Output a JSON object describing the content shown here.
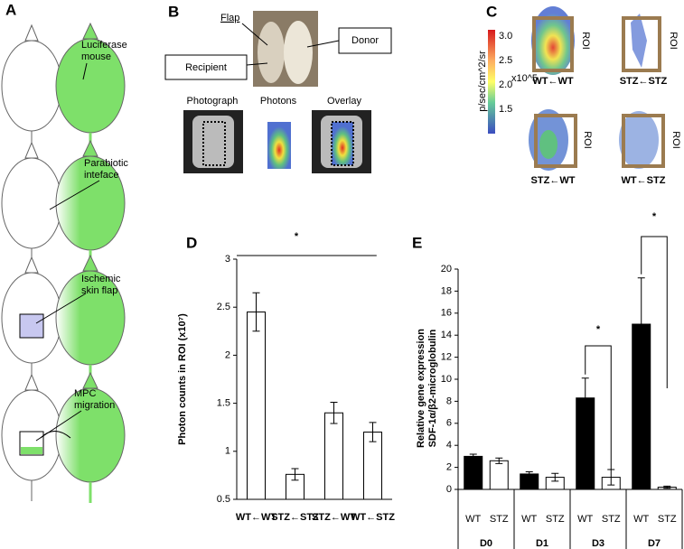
{
  "panel_a": {
    "letter": "A",
    "labels": [
      [
        "Luciferase",
        "mouse"
      ],
      [
        "Parabiotic",
        "inteface"
      ],
      [
        "Ischemic",
        "skin flap"
      ],
      [
        "MPC",
        "migration"
      ]
    ]
  },
  "panel_b": {
    "letter": "B",
    "flap": "Flap",
    "donor": "Donor",
    "recipient": "Recipient",
    "captions": [
      "Photograph",
      "Photons",
      "Overlay"
    ]
  },
  "panel_c": {
    "letter": "C",
    "colorbar_label": "p/sec/cm^2/sr",
    "colorbar_scale": "x10^5",
    "colorbar_ticks": [
      "3.0",
      "2.5",
      "2.0",
      "1.5"
    ],
    "roi": "ROI",
    "groups": [
      "WT←WT",
      "STZ←STZ",
      "STZ←WT",
      "WT←STZ"
    ]
  },
  "chart_data": [
    {
      "type": "bar",
      "letter": "D",
      "y_label": "Photon counts in ROI (x10⁷)",
      "categories": [
        "WT←WT",
        "STZ←STZ",
        "STZ←WT",
        "WT←STZ"
      ],
      "values": [
        2.45,
        0.76,
        1.4,
        1.2
      ],
      "errors": [
        0.2,
        0.06,
        0.11,
        0.1
      ],
      "color": "#ffffff",
      "ylim": [
        0.5,
        3
      ],
      "yticks": [
        0.5,
        1,
        1.5,
        2,
        2.5,
        3
      ],
      "annotations": [
        "*"
      ]
    },
    {
      "type": "grouped_bar",
      "letter": "E",
      "y_label": [
        "Relative gene expression",
        "SDF-1α/β2-microglobulin"
      ],
      "categories": [
        "D0",
        "D1",
        "D3",
        "D7"
      ],
      "series": [
        {
          "name": "WT",
          "color": "#000000",
          "values": [
            3.0,
            1.4,
            8.3,
            15.0
          ],
          "errors": [
            0.2,
            0.2,
            1.8,
            4.2
          ]
        },
        {
          "name": "STZ",
          "color": "#ffffff",
          "values": [
            2.6,
            1.1,
            1.1,
            0.2
          ],
          "errors": [
            0.25,
            0.35,
            0.7,
            0.1
          ]
        }
      ],
      "ylim": [
        0,
        20
      ],
      "yticks": [
        0,
        2,
        4,
        6,
        8,
        10,
        12,
        14,
        16,
        18,
        20
      ],
      "annotations": [
        "*",
        "*"
      ]
    }
  ]
}
